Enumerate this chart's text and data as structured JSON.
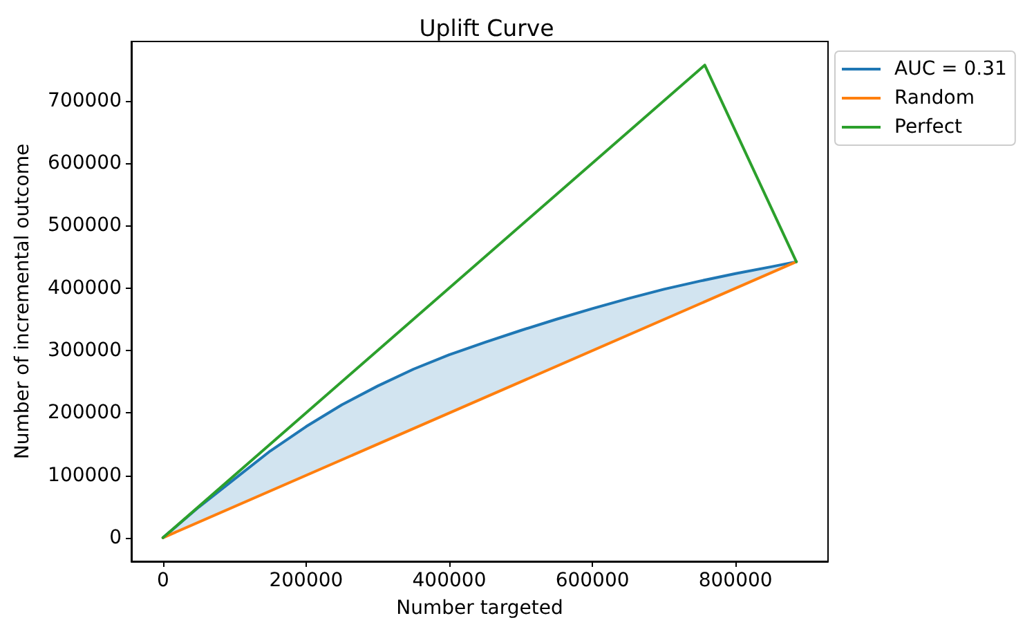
{
  "chart_data": {
    "type": "line",
    "title": "Uplift Curve",
    "xlabel": "Number targeted",
    "ylabel": "Number of incremental outcome",
    "xlim": [
      -44250,
      929250
    ],
    "xticks": [
      0,
      200000,
      400000,
      600000,
      800000
    ],
    "ylim": [
      -37850,
      794850
    ],
    "yticks": [
      0,
      100000,
      200000,
      300000,
      400000,
      500000,
      600000,
      700000
    ],
    "legend": "top right",
    "series": [
      {
        "name": "AUC = 0.31",
        "color": "#1f77b4",
        "x": [
          0,
          50000,
          100000,
          150000,
          200000,
          250000,
          300000,
          350000,
          400000,
          450000,
          500000,
          550000,
          600000,
          650000,
          700000,
          750000,
          800000,
          850000,
          885000
        ],
        "values": [
          0,
          49000,
          94000,
          139000,
          178000,
          213000,
          243000,
          270000,
          293000,
          313000,
          332000,
          350000,
          367000,
          383000,
          398000,
          411000,
          423000,
          434000,
          442000
        ],
        "upper": [
          0,
          49000,
          94000,
          139000,
          178000,
          213000,
          243000,
          270000,
          293000,
          313000,
          332000,
          350000,
          367000,
          383000,
          398000,
          411000,
          423000,
          434000,
          442000
        ],
        "lower": [
          0,
          25000,
          50000,
          75000,
          100000,
          125000,
          150000,
          175000,
          200000,
          225000,
          250000,
          275000,
          300000,
          325000,
          350000,
          375000,
          400000,
          424000,
          442000
        ]
      },
      {
        "name": "Random",
        "color": "#ff7f0e",
        "x": [
          0,
          885000
        ],
        "values": [
          0,
          442000
        ]
      },
      {
        "name": "Perfect",
        "color": "#2ca02c",
        "x": [
          0,
          757000,
          885000
        ],
        "values": [
          0,
          757000,
          442000
        ]
      }
    ]
  }
}
